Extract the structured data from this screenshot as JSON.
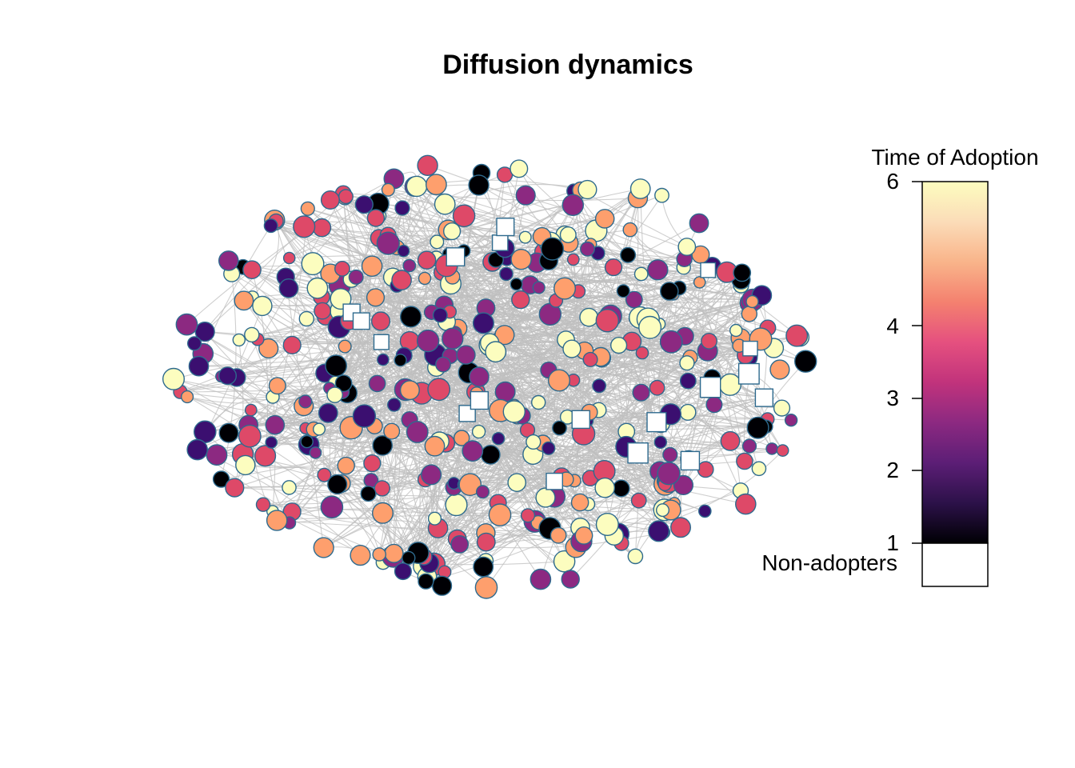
{
  "title": "Diffusion dynamics",
  "legend": {
    "title": "Time of Adoption",
    "ticks": [
      "6",
      "4",
      "3",
      "2",
      "1"
    ],
    "non_adopters_label": "Non-adopters",
    "colorscale": [
      "#000004",
      "#2c1149",
      "#5c1e76",
      "#8c2981",
      "#c1337c",
      "#e5507f",
      "#f4816f",
      "#f9b48a",
      "#fbdcb8",
      "#fcfdbf"
    ]
  },
  "style": {
    "edge_color": "#bfbfbf",
    "node_border": "#2e6a8e",
    "non_adopter_fill": "#ffffff"
  }
}
